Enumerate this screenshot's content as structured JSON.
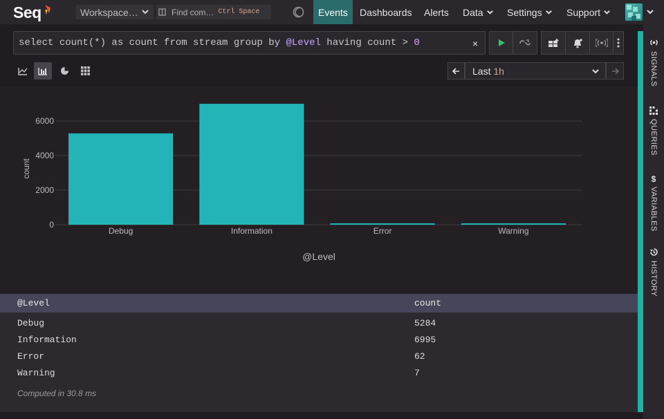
{
  "topbar": {
    "logo_text": "Seq",
    "workspace_label": "Workspace…",
    "find_placeholder": "Find com…",
    "find_shortcut_1": "Ctrl",
    "find_shortcut_2": "Space",
    "nav": {
      "events": "Events",
      "dashboards": "Dashboards",
      "alerts": "Alerts",
      "data": "Data",
      "settings": "Settings",
      "support": "Support"
    },
    "active_tab": "Events"
  },
  "query": {
    "kw1": "select ",
    "fn": "count(*)",
    "kw2": " as count from stream group by ",
    "prop": "@Level",
    "kw3": " having count > ",
    "num": "0",
    "clear_label": "×"
  },
  "timerange": {
    "label": "Last ",
    "value": "1h"
  },
  "chart_data": {
    "type": "bar",
    "categories": [
      "Debug",
      "Information",
      "Error",
      "Warning"
    ],
    "values": [
      5284,
      6995,
      62,
      7
    ],
    "xlabel": "@Level",
    "ylabel": "count",
    "yticks": [
      "0",
      "2000",
      "4000",
      "6000"
    ],
    "ylim": [
      0,
      7600
    ],
    "bar_color": "#22b4b6",
    "grid": true
  },
  "results": {
    "headers": [
      "@Level",
      "count"
    ],
    "rows": [
      [
        "Debug",
        "5284"
      ],
      [
        "Information",
        "6995"
      ],
      [
        "Error",
        "62"
      ],
      [
        "Warning",
        "7"
      ]
    ],
    "computed": "Computed in 30.8 ms"
  },
  "sidebar": {
    "signals": "SIGNALS",
    "queries": "QUERIES",
    "variables": "VARIABLES",
    "history": "HISTORY"
  },
  "colors": {
    "accent": "#1fb2a1",
    "active_nav": "#2a6b6c",
    "run_icon": "#2fc46a"
  }
}
